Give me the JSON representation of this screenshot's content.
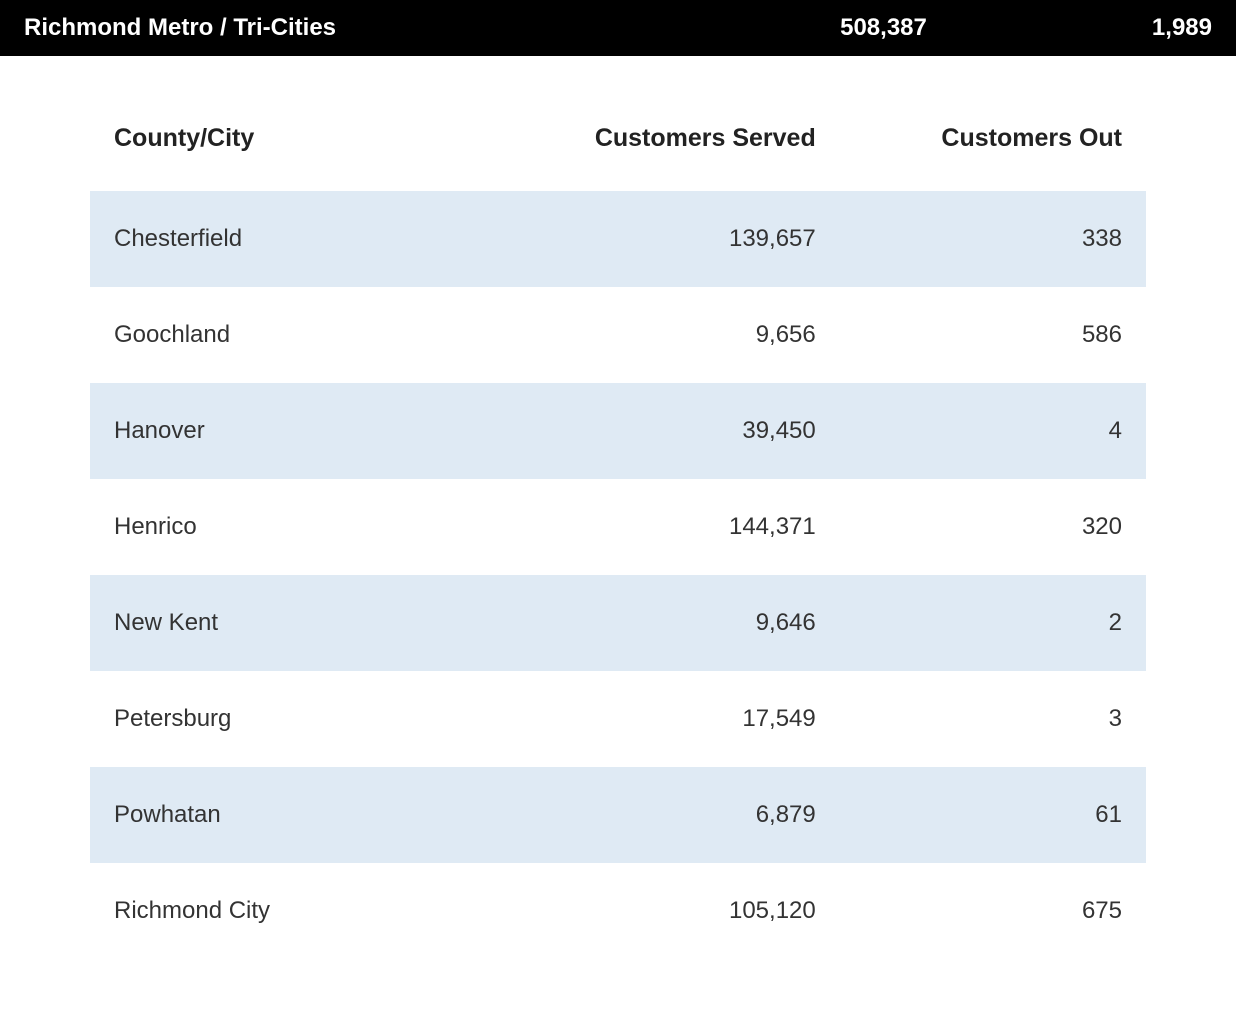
{
  "summary": {
    "region": "Richmond Metro / Tri-Cities",
    "customers_served": "508,387",
    "customers_out": "1,989"
  },
  "table": {
    "columns": {
      "county_city": "County/City",
      "customers_served": "Customers Served",
      "customers_out": "Customers Out"
    },
    "rows": [
      {
        "county_city": "Chesterfield",
        "customers_served": "139,657",
        "customers_out": "338"
      },
      {
        "county_city": "Goochland",
        "customers_served": "9,656",
        "customers_out": "586"
      },
      {
        "county_city": "Hanover",
        "customers_served": "39,450",
        "customers_out": "4"
      },
      {
        "county_city": "Henrico",
        "customers_served": "144,371",
        "customers_out": "320"
      },
      {
        "county_city": "New Kent",
        "customers_served": "9,646",
        "customers_out": "2"
      },
      {
        "county_city": "Petersburg",
        "customers_served": "17,549",
        "customers_out": "3"
      },
      {
        "county_city": "Powhatan",
        "customers_served": "6,879",
        "customers_out": "61"
      },
      {
        "county_city": "Richmond City",
        "customers_served": "105,120",
        "customers_out": "675"
      }
    ],
    "row_colors": {
      "odd": "#dfeaf4",
      "even": "#ffffff"
    },
    "header_font_size": 25,
    "cell_font_size": 24,
    "text_color": "#333333"
  },
  "styles": {
    "summary_background": "#000000",
    "summary_text_color": "#ffffff",
    "page_background": "#ffffff"
  }
}
